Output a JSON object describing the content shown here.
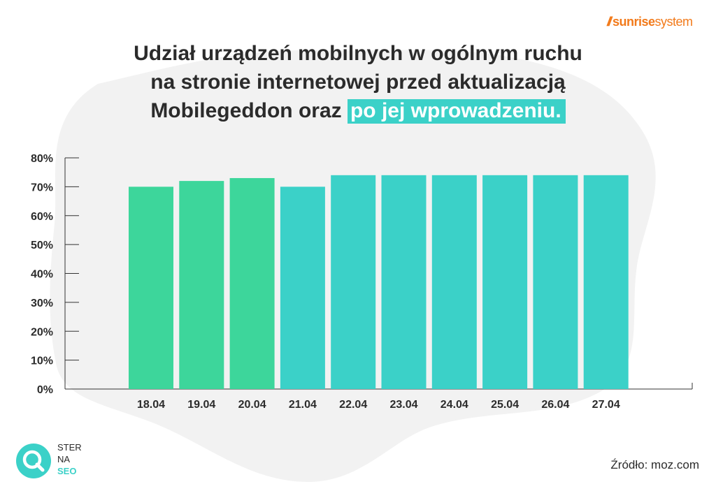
{
  "brand": {
    "part1": "sunrise",
    "part2": "system",
    "color": "#f27a1a"
  },
  "title": {
    "line1": "Udział urządzeń mobilnych w ogólnym ruchu",
    "line2": "na stronie internetowej przed aktualizacją",
    "line3_plain": "Mobilegeddon oraz",
    "line3_highlight": "po jej wprowadzeniu."
  },
  "chart_data": {
    "type": "bar",
    "categories": [
      "18.04",
      "19.04",
      "20.04",
      "21.04",
      "22.04",
      "23.04",
      "24.04",
      "25.04",
      "26.04",
      "27.04"
    ],
    "values": [
      70,
      72,
      73,
      70,
      74,
      74,
      74,
      74,
      74,
      74
    ],
    "bar_colors": [
      "#3dd69b",
      "#3dd69b",
      "#3dd69b",
      "#3bd1c8",
      "#3bd1c8",
      "#3bd1c8",
      "#3bd1c8",
      "#3bd1c8",
      "#3bd1c8",
      "#3bd1c8"
    ],
    "ylim": [
      0,
      80
    ],
    "yticks": [
      "0%",
      "10%",
      "20%",
      "30%",
      "40%",
      "50%",
      "60%",
      "70%",
      "80%"
    ],
    "grid": false
  },
  "logo": {
    "line1": "STER",
    "line2": "NA",
    "line3": "SEO",
    "color": "#3bd1c8"
  },
  "source": "Źródło: moz.com",
  "colors": {
    "before": "#3dd69b",
    "after": "#3bd1c8",
    "blob": "#f2f2f2"
  }
}
